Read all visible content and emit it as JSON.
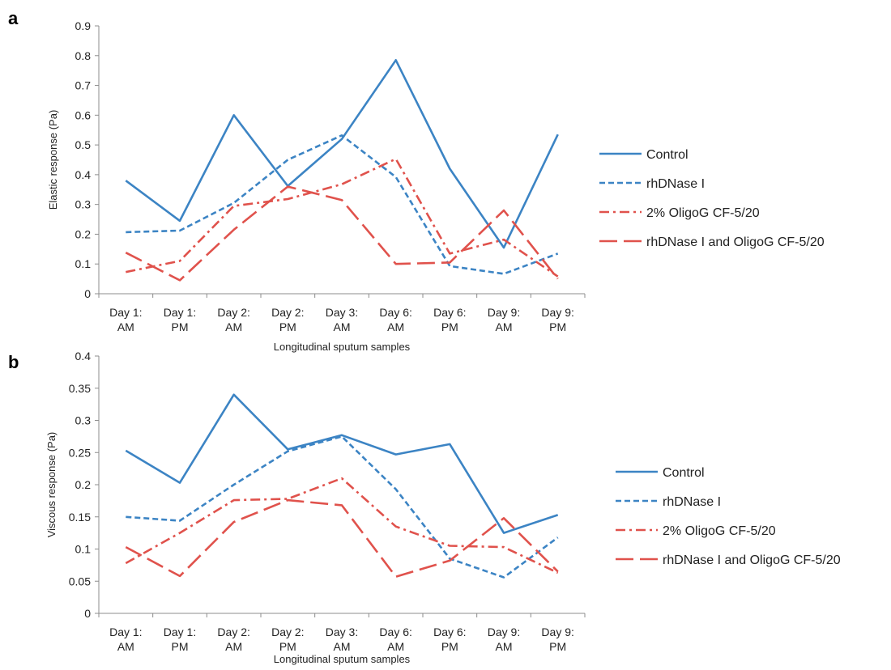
{
  "colors": {
    "blue": "#3c84c4",
    "red": "#e0524c",
    "axis": "#8c8c8c"
  },
  "chart_data": [
    {
      "panel": "a",
      "type": "line",
      "xlabel": "Longitudinal sputum samples",
      "ylabel": "Elastic response (Pa)",
      "ylim": [
        0,
        0.9
      ],
      "yticks": [
        "0",
        "0.1",
        "0.2",
        "0.3",
        "0.4",
        "0.5",
        "0.6",
        "0.7",
        "0.8",
        "0.9"
      ],
      "grid": false,
      "legend_position": "right",
      "categories": [
        [
          "Day 1:",
          "AM"
        ],
        [
          "Day 1:",
          "PM"
        ],
        [
          "Day 2:",
          "AM"
        ],
        [
          "Day 2:",
          "PM"
        ],
        [
          "Day 3:",
          "AM"
        ],
        [
          "Day 6:",
          "AM"
        ],
        [
          "Day 6:",
          "PM"
        ],
        [
          "Day 9:",
          "AM"
        ],
        [
          "Day 9:",
          "PM"
        ]
      ],
      "series": [
        {
          "name": "Control",
          "color": "#3c84c4",
          "dash": "solid",
          "values": [
            0.38,
            0.245,
            0.6,
            0.362,
            0.52,
            0.785,
            0.42,
            0.155,
            0.535
          ]
        },
        {
          "name": "rhDNase I",
          "color": "#3c84c4",
          "dash": "short-dash",
          "values": [
            0.207,
            0.212,
            0.305,
            0.45,
            0.532,
            0.392,
            0.093,
            0.067,
            0.135
          ]
        },
        {
          "name": "2% OligoG CF-5/20",
          "color": "#e0524c",
          "dash": "dash-dot",
          "values": [
            0.073,
            0.11,
            0.295,
            0.318,
            0.368,
            0.453,
            0.135,
            0.182,
            0.058
          ]
        },
        {
          "name": "rhDNase I and OligoG CF-5/20",
          "color": "#e0524c",
          "dash": "long-dash",
          "values": [
            0.138,
            0.045,
            0.215,
            0.36,
            0.315,
            0.1,
            0.105,
            0.28,
            0.05
          ]
        }
      ]
    },
    {
      "panel": "b",
      "type": "line",
      "xlabel": "Longitudinal sputum samples",
      "ylabel": "Viscous response (Pa)",
      "ylim": [
        0,
        0.4
      ],
      "yticks": [
        "0",
        "0.05",
        "0.1",
        "0.15",
        "0.2",
        "0.25",
        "0.3",
        "0.35",
        "0.4"
      ],
      "grid": false,
      "legend_position": "right",
      "categories": [
        [
          "Day 1:",
          "AM"
        ],
        [
          "Day 1:",
          "PM"
        ],
        [
          "Day 2:",
          "AM"
        ],
        [
          "Day 2:",
          "PM"
        ],
        [
          "Day 3:",
          "AM"
        ],
        [
          "Day 6:",
          "AM"
        ],
        [
          "Day 6:",
          "PM"
        ],
        [
          "Day 9:",
          "AM"
        ],
        [
          "Day 9:",
          "PM"
        ]
      ],
      "series": [
        {
          "name": "Control",
          "color": "#3c84c4",
          "dash": "solid",
          "values": [
            0.253,
            0.203,
            0.34,
            0.255,
            0.277,
            0.247,
            0.263,
            0.125,
            0.153
          ]
        },
        {
          "name": "rhDNase I",
          "color": "#3c84c4",
          "dash": "short-dash",
          "values": [
            0.15,
            0.144,
            0.2,
            0.252,
            0.275,
            0.193,
            0.085,
            0.056,
            0.118
          ]
        },
        {
          "name": "2% OligoG CF-5/20",
          "color": "#e0524c",
          "dash": "dash-dot",
          "values": [
            0.078,
            0.125,
            0.176,
            0.178,
            0.21,
            0.135,
            0.105,
            0.103,
            0.063
          ]
        },
        {
          "name": "rhDNase I and OligoG CF-5/20",
          "color": "#e0524c",
          "dash": "long-dash",
          "values": [
            0.103,
            0.058,
            0.142,
            0.176,
            0.168,
            0.057,
            0.082,
            0.148,
            0.065
          ]
        }
      ]
    }
  ]
}
